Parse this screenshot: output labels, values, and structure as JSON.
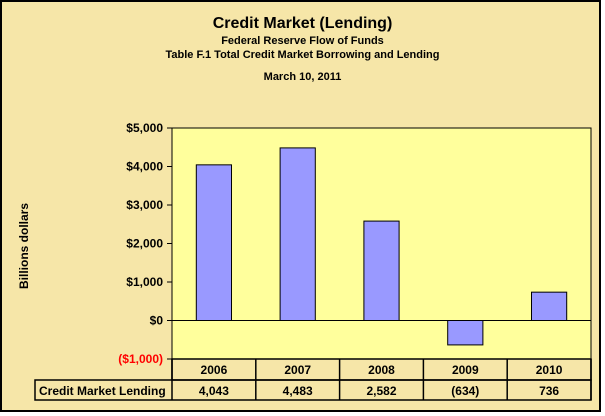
{
  "chart_data": {
    "type": "bar",
    "title": "Credit Market (Lending)",
    "subtitle_lines": [
      "Federal Reserve Flow of Funds",
      "Table F.1 Total Credit Market Borrowing and Lending"
    ],
    "date": "March 10, 2011",
    "ylabel": "Billions dollars",
    "categories": [
      "2006",
      "2007",
      "2008",
      "2009",
      "2010"
    ],
    "series": [
      {
        "name": "Credit Market Lending",
        "values": [
          4043,
          4483,
          2582,
          -634,
          736
        ]
      }
    ],
    "data_table": {
      "row_label": "Credit Market Lending",
      "cells": [
        "4,043",
        "4,483",
        "2,582",
        "(634)",
        "736"
      ]
    },
    "ylim": [
      -1000,
      5000
    ],
    "yticks": [
      5000,
      4000,
      3000,
      2000,
      1000,
      0,
      -1000
    ],
    "ytick_labels": [
      "$5,000",
      "$4,000",
      "$3,000",
      "$2,000",
      "$1,000",
      "$0",
      "($1,000)"
    ],
    "grid": false,
    "legend": "none"
  },
  "colors": {
    "background": "#f6e6a8",
    "plot_area": "#ffff9c",
    "bar_fill": "#9999ff",
    "negative_label": "#ff0000"
  }
}
